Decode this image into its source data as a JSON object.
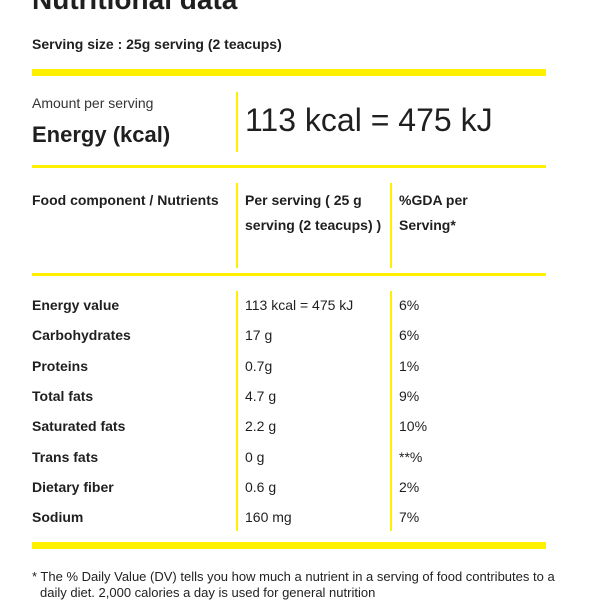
{
  "header": {
    "title": "Nutritional data",
    "serving_size": "Serving size : 25g serving (2 teacups)"
  },
  "energy": {
    "amount_label": "Amount per serving",
    "label": "Energy (kcal)",
    "value": "113 kcal = 475 kJ"
  },
  "table": {
    "columns": [
      "Food component / Nutrients",
      "Per serving ( 25 g serving (2 teacups) )",
      "%GDA per Serving*"
    ],
    "rows": [
      [
        "Energy value",
        "113 kcal = 475 kJ",
        "6%"
      ],
      [
        "Carbohydrates",
        "17 g",
        "6%"
      ],
      [
        "Proteins",
        "0.7g",
        "1%"
      ],
      [
        "Total fats",
        "4.7 g",
        "9%"
      ],
      [
        "Saturated fats",
        "2.2 g",
        "10%"
      ],
      [
        "Trans fats",
        "0 g",
        "**%"
      ],
      [
        "Dietary fiber",
        "0.6 g",
        "2%"
      ],
      [
        "Sodium",
        "160 mg",
        "7%"
      ]
    ]
  },
  "footnote": "* The % Daily Value (DV) tells you how much a nutrient in a serving of food contributes to a daily diet. 2,000 calories a day is used for general nutrition"
}
